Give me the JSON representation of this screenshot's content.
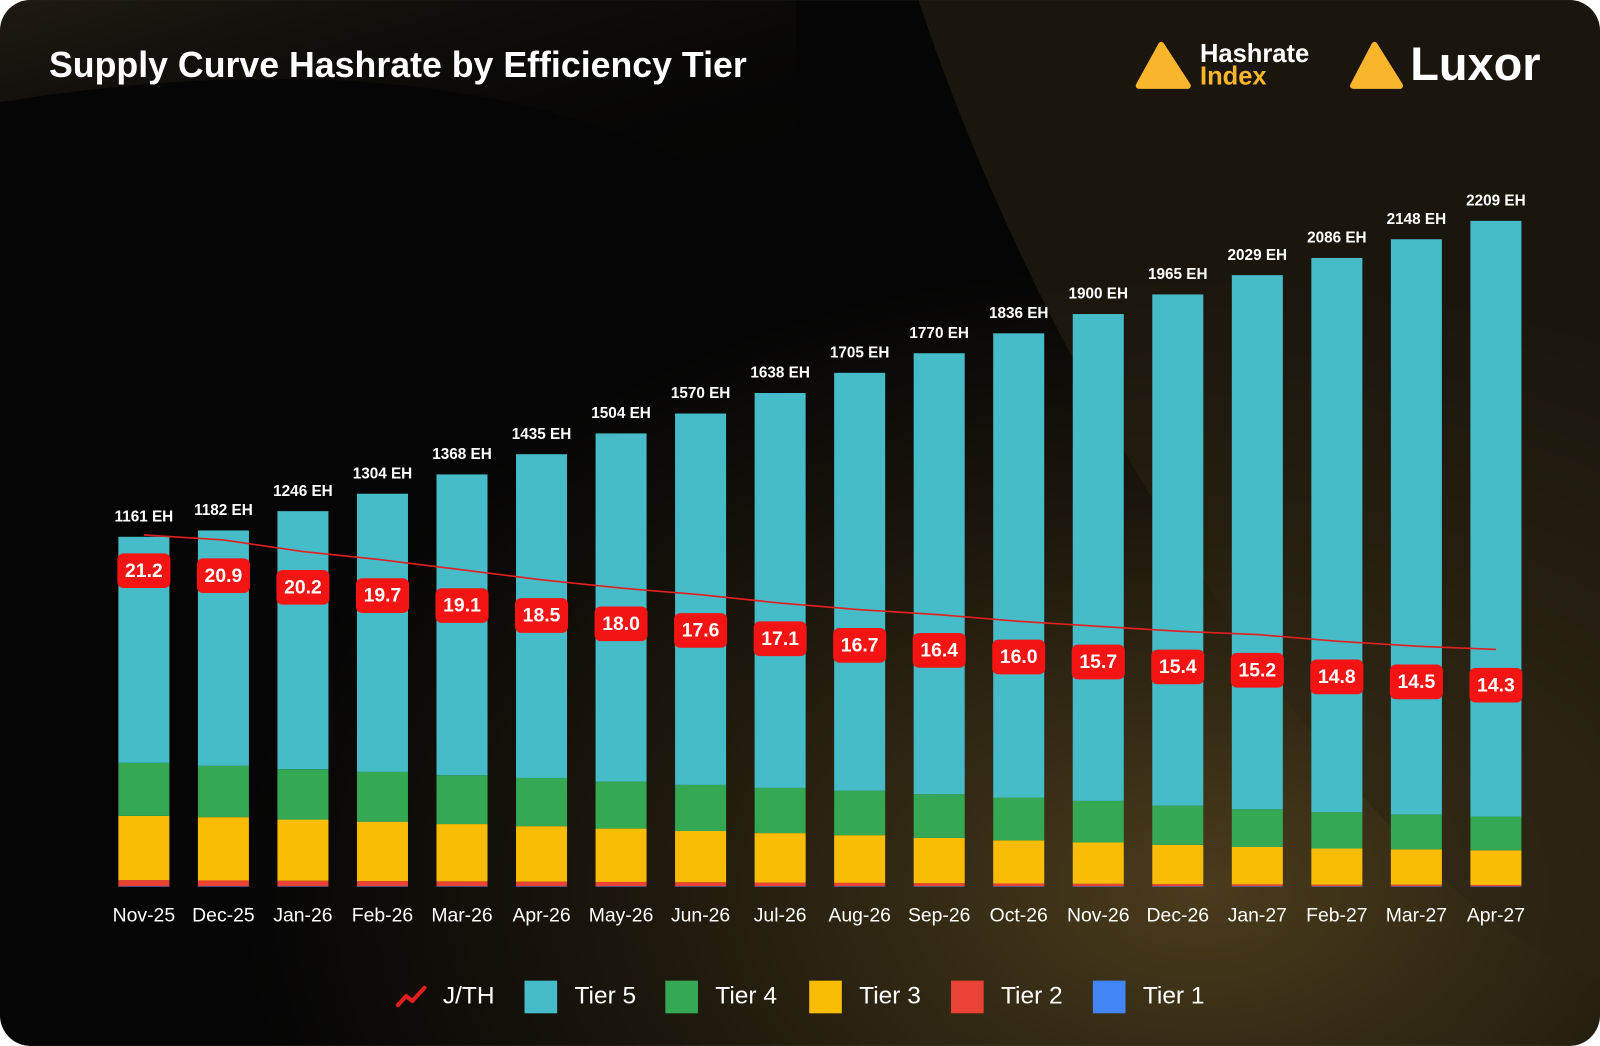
{
  "chart_data": {
    "type": "bar",
    "stacked": true,
    "title": "Supply Curve Hashrate by Efficiency Tier",
    "logos": {
      "hashrate_index": [
        "Hashrate",
        "Index"
      ],
      "luxor": "Luxor"
    },
    "categories": [
      "Nov-25",
      "Dec-25",
      "Jan-26",
      "Feb-26",
      "Mar-26",
      "Apr-26",
      "May-26",
      "Jun-26",
      "Jul-26",
      "Aug-26",
      "Sep-26",
      "Oct-26",
      "Nov-26",
      "Dec-26",
      "Jan-27",
      "Feb-27",
      "Mar-27",
      "Apr-27"
    ],
    "total_labels": [
      "1161 EH",
      "1182 EH",
      "1246 EH",
      "1304 EH",
      "1368 EH",
      "1435 EH",
      "1504 EH",
      "1570 EH",
      "1638 EH",
      "1705 EH",
      "1770 EH",
      "1836 EH",
      "1900 EH",
      "1965 EH",
      "2029 EH",
      "2086 EH",
      "2148 EH",
      "2209 EH"
    ],
    "ylim": [
      0,
      2400
    ],
    "y2lim": [
      0,
      43.6
    ],
    "series": [
      {
        "name": "J/TH",
        "type": "line",
        "axis": "y2",
        "color": "#e3201e",
        "label_color": "#f41414",
        "values": [
          21.2,
          20.9,
          20.2,
          19.7,
          19.1,
          18.5,
          18.0,
          17.6,
          17.1,
          16.7,
          16.4,
          16.0,
          15.7,
          15.4,
          15.2,
          14.8,
          14.5,
          14.3
        ],
        "value_labels": [
          "21.2",
          "20.9",
          "20.2",
          "19.7",
          "19.1",
          "18.5",
          "18.0",
          "17.6",
          "17.1",
          "16.7",
          "16.4",
          "16.0",
          "15.7",
          "15.4",
          "15.2",
          "14.8",
          "14.5",
          "14.3"
        ]
      },
      {
        "name": "Tier 5",
        "color": "#45bcc8",
        "values": [
          750,
          781,
          856,
          923,
          998,
          1074,
          1155,
          1232,
          1310,
          1386,
          1463,
          1540,
          1615,
          1696,
          1772,
          1839,
          1908,
          1976
        ]
      },
      {
        "name": "Tier 4",
        "color": "#34a853",
        "values": [
          176,
          170,
          167,
          165,
          162,
          160,
          156,
          153,
          150,
          148,
          145,
          142,
          138,
          130,
          125,
          120,
          116,
          112
        ]
      },
      {
        "name": "Tier 3",
        "color": "#fbbc05",
        "values": [
          213,
          210,
          203,
          197,
          190,
          184,
          177,
          170,
          164,
          158,
          150,
          143,
          137,
          130,
          124,
          120,
          117,
          115
        ]
      },
      {
        "name": "Tier 2",
        "color": "#ea4335",
        "values": [
          20,
          19,
          18,
          17,
          16,
          15,
          14,
          13,
          12,
          11,
          10,
          9,
          8,
          7,
          6,
          5,
          5,
          4
        ]
      },
      {
        "name": "Tier 1",
        "color": "#4285f4",
        "values": [
          2,
          2,
          2,
          2,
          2,
          2,
          2,
          2,
          2,
          2,
          2,
          2,
          2,
          2,
          2,
          2,
          2,
          2
        ]
      }
    ]
  }
}
